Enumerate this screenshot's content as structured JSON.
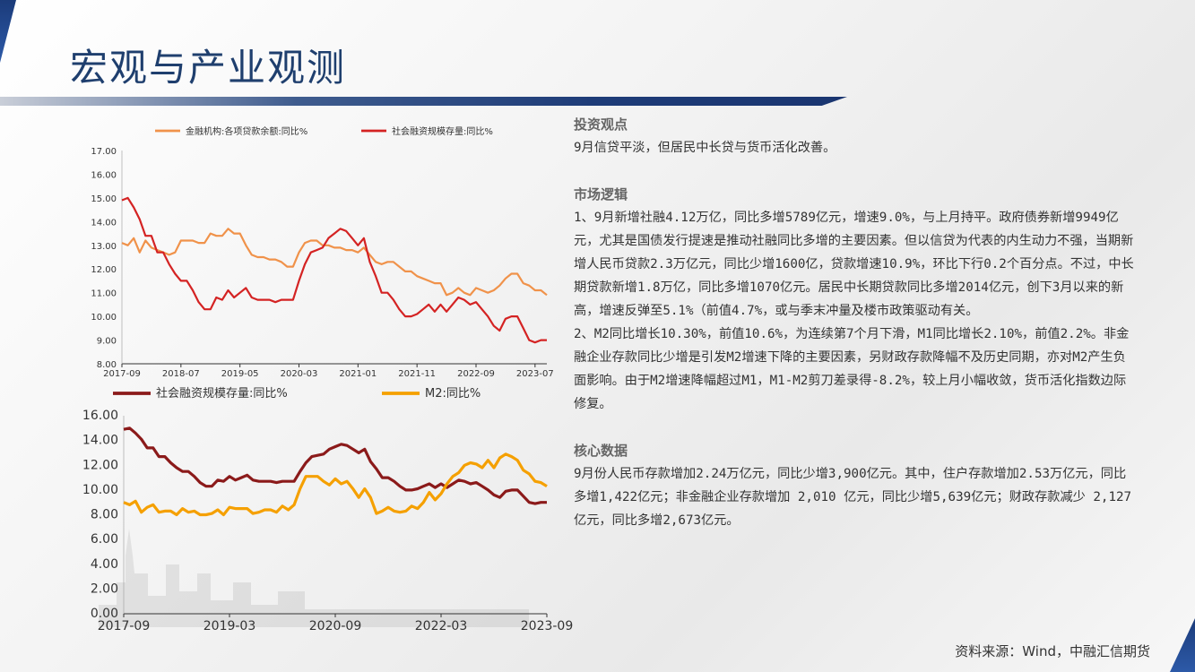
{
  "header": {
    "title": "宏观与产业观测"
  },
  "charts": {
    "top": {
      "legend": [
        "金融机构:各项贷款余额:同比%",
        "社会融资规模存量:同比%"
      ],
      "yticks": [
        "17.00",
        "16.00",
        "15.00",
        "14.00",
        "13.00",
        "12.00",
        "11.00",
        "10.00",
        "9.00",
        "8.00"
      ],
      "xticks": [
        "2017-09",
        "2018-07",
        "2019-05",
        "2020-03",
        "2021-01",
        "2021-11",
        "2022-09",
        "2023-07"
      ]
    },
    "bottom": {
      "legend": [
        "社会融资规模存量:同比%",
        "M2:同比%"
      ],
      "yticks": [
        "16.00",
        "14.00",
        "12.00",
        "10.00",
        "8.00",
        "6.00",
        "4.00",
        "2.00",
        "0.00"
      ],
      "xticks": [
        "2017-09",
        "2019-03",
        "2020-09",
        "2022-03",
        "2023-09"
      ]
    }
  },
  "chart_data": [
    {
      "type": "line",
      "x": [
        "2017-09",
        "2017-10",
        "2017-11",
        "2017-12",
        "2018-01",
        "2018-02",
        "2018-03",
        "2018-04",
        "2018-05",
        "2018-06",
        "2018-07",
        "2018-08",
        "2018-09",
        "2018-10",
        "2018-11",
        "2018-12",
        "2019-01",
        "2019-02",
        "2019-03",
        "2019-04",
        "2019-05",
        "2019-06",
        "2019-07",
        "2019-08",
        "2019-09",
        "2019-10",
        "2019-11",
        "2019-12",
        "2020-01",
        "2020-02",
        "2020-03",
        "2020-04",
        "2020-05",
        "2020-06",
        "2020-07",
        "2020-08",
        "2020-09",
        "2020-10",
        "2020-11",
        "2020-12",
        "2021-01",
        "2021-02",
        "2021-03",
        "2021-04",
        "2021-05",
        "2021-06",
        "2021-07",
        "2021-08",
        "2021-09",
        "2021-10",
        "2021-11",
        "2021-12",
        "2022-01",
        "2022-02",
        "2022-03",
        "2022-04",
        "2022-05",
        "2022-06",
        "2022-07",
        "2022-08",
        "2022-09",
        "2022-10",
        "2022-11",
        "2022-12",
        "2023-01",
        "2023-02",
        "2023-03",
        "2023-04",
        "2023-05",
        "2023-06",
        "2023-07",
        "2023-08",
        "2023-09"
      ],
      "series": [
        {
          "name": "金融机构:各项贷款余额:同比%",
          "color": "#f0924a",
          "values": [
            13.1,
            13.0,
            13.3,
            12.7,
            13.2,
            12.9,
            12.8,
            12.7,
            12.6,
            12.7,
            13.2,
            13.2,
            13.2,
            13.1,
            13.1,
            13.5,
            13.4,
            13.4,
            13.7,
            13.5,
            13.5,
            13.0,
            12.6,
            12.5,
            12.5,
            12.4,
            12.4,
            12.3,
            12.1,
            12.1,
            12.7,
            13.1,
            13.2,
            13.2,
            13.0,
            13.0,
            12.9,
            12.9,
            12.8,
            12.8,
            12.7,
            12.9,
            12.6,
            12.3,
            12.2,
            12.3,
            12.3,
            12.1,
            11.9,
            11.9,
            11.7,
            11.6,
            11.5,
            11.4,
            11.4,
            10.9,
            11.0,
            11.2,
            11.0,
            10.9,
            11.2,
            11.1,
            11.0,
            11.1,
            11.3,
            11.6,
            11.8,
            11.8,
            11.4,
            11.3,
            11.1,
            11.1,
            10.9
          ]
        },
        {
          "name": "社会融资规模存量:同比%",
          "color": "#d42323",
          "values": [
            14.9,
            15.0,
            14.6,
            14.1,
            13.4,
            13.4,
            12.7,
            12.7,
            12.2,
            11.8,
            11.5,
            11.5,
            11.1,
            10.6,
            10.3,
            10.3,
            10.8,
            10.7,
            11.1,
            10.8,
            11.0,
            11.2,
            10.8,
            10.7,
            10.7,
            10.7,
            10.6,
            10.7,
            10.7,
            10.7,
            11.5,
            12.2,
            12.7,
            12.8,
            12.9,
            13.3,
            13.5,
            13.7,
            13.6,
            13.3,
            13.0,
            13.3,
            12.3,
            11.7,
            11.0,
            11.0,
            10.7,
            10.3,
            10.0,
            10.0,
            10.1,
            10.3,
            10.5,
            10.2,
            10.5,
            10.2,
            10.5,
            10.8,
            10.7,
            10.5,
            10.6,
            10.3,
            10.0,
            9.6,
            9.4,
            9.9,
            10.0,
            10.0,
            9.5,
            9.0,
            8.9,
            9.0,
            9.0
          ]
        }
      ],
      "ylim": [
        8,
        17
      ]
    },
    {
      "type": "line",
      "x": [
        "2017-09",
        "2017-10",
        "2017-11",
        "2017-12",
        "2018-01",
        "2018-02",
        "2018-03",
        "2018-04",
        "2018-05",
        "2018-06",
        "2018-07",
        "2018-08",
        "2018-09",
        "2018-10",
        "2018-11",
        "2018-12",
        "2019-01",
        "2019-02",
        "2019-03",
        "2019-04",
        "2019-05",
        "2019-06",
        "2019-07",
        "2019-08",
        "2019-09",
        "2019-10",
        "2019-11",
        "2019-12",
        "2020-01",
        "2020-02",
        "2020-03",
        "2020-04",
        "2020-05",
        "2020-06",
        "2020-07",
        "2020-08",
        "2020-09",
        "2020-10",
        "2020-11",
        "2020-12",
        "2021-01",
        "2021-02",
        "2021-03",
        "2021-04",
        "2021-05",
        "2021-06",
        "2021-07",
        "2021-08",
        "2021-09",
        "2021-10",
        "2021-11",
        "2021-12",
        "2022-01",
        "2022-02",
        "2022-03",
        "2022-04",
        "2022-05",
        "2022-06",
        "2022-07",
        "2022-08",
        "2022-09",
        "2022-10",
        "2022-11",
        "2022-12",
        "2023-01",
        "2023-02",
        "2023-03",
        "2023-04",
        "2023-05",
        "2023-06",
        "2023-07",
        "2023-08",
        "2023-09"
      ],
      "series": [
        {
          "name": "社会融资规模存量:同比%",
          "color": "#8b1a1a",
          "values": [
            14.9,
            15.0,
            14.6,
            14.1,
            13.4,
            13.4,
            12.7,
            12.7,
            12.2,
            11.8,
            11.5,
            11.5,
            11.1,
            10.6,
            10.3,
            10.3,
            10.8,
            10.7,
            11.1,
            10.8,
            11.0,
            11.2,
            10.8,
            10.7,
            10.7,
            10.7,
            10.6,
            10.7,
            10.7,
            10.7,
            11.5,
            12.2,
            12.7,
            12.8,
            12.9,
            13.3,
            13.5,
            13.7,
            13.6,
            13.3,
            13.0,
            13.3,
            12.3,
            11.7,
            11.0,
            11.0,
            10.7,
            10.3,
            10.0,
            10.0,
            10.1,
            10.3,
            10.5,
            10.2,
            10.5,
            10.2,
            10.5,
            10.8,
            10.7,
            10.5,
            10.6,
            10.3,
            10.0,
            9.6,
            9.4,
            9.9,
            10.0,
            10.0,
            9.5,
            9.0,
            8.9,
            9.0,
            9.0
          ]
        },
        {
          "name": "M2:同比%",
          "color": "#f5a000",
          "values": [
            9.0,
            8.8,
            9.1,
            8.2,
            8.6,
            8.8,
            8.2,
            8.3,
            8.3,
            8.0,
            8.5,
            8.2,
            8.3,
            8.0,
            8.0,
            8.1,
            8.4,
            8.0,
            8.6,
            8.5,
            8.5,
            8.5,
            8.1,
            8.2,
            8.4,
            8.4,
            8.2,
            8.7,
            8.4,
            8.8,
            10.1,
            11.1,
            11.1,
            11.1,
            10.7,
            10.4,
            10.9,
            10.5,
            10.7,
            10.1,
            9.4,
            10.1,
            9.4,
            8.1,
            8.3,
            8.6,
            8.3,
            8.2,
            8.3,
            8.7,
            8.5,
            9.0,
            9.8,
            9.2,
            9.7,
            10.5,
            11.1,
            11.4,
            12.0,
            12.2,
            12.1,
            11.8,
            12.4,
            11.8,
            12.6,
            12.9,
            12.7,
            12.4,
            11.6,
            11.3,
            10.7,
            10.6,
            10.3
          ]
        }
      ],
      "ylim": [
        0,
        16
      ]
    }
  ],
  "text": {
    "s1_head": "投资观点",
    "s1_body": "9月信贷平淡，但居民中长贷与货币活化改善。",
    "s2_head": "市场逻辑",
    "s2_p1": "1、9月新增社融4.12万亿，同比多增5789亿元，增速9.0%，与上月持平。政府债券新增9949亿元，尤其是国债发行提速是推动社融同比多增的主要因素。但以信贷为代表的内生动力不强，当期新增人民币贷款2.3万亿元，同比少增1600亿，贷款增速10.9%，环比下行0.2个百分点。不过，中长期贷款新增1.8万亿，同比多增1070亿元。居民中长期贷款同比多增2014亿元，创下3月以来的新高，增速反弹至5.1%（前值4.7%，或与季末冲量及楼市政策驱动有关。",
    "s2_p2": "2、M2同比增长10.30%，前值10.6%，为连续第7个月下滑，M1同比增长2.10%，前值2.2%。非金融企业存款同比少增是引发M2增速下降的主要因素，另财政存款降幅不及历史同期，亦对M2产生负面影响。由于M2增速降幅超过M1，M1-M2剪刀差录得-8.2%，较上月小幅收敛，货币活化指数边际修复。",
    "s3_head": "核心数据",
    "s3_body": "9月份人民币存款增加2.24万亿元，同比少增3,900亿元。其中，住户存款增加2.53万亿元，同比多增1,422亿元；非金融企业存款增加 2,010 亿元，同比少增5,639亿元；财政存款减少 2,127 亿元，同比多增2,673亿元。"
  },
  "footer": {
    "source": "资料来源：Wind，中融汇信期货"
  }
}
